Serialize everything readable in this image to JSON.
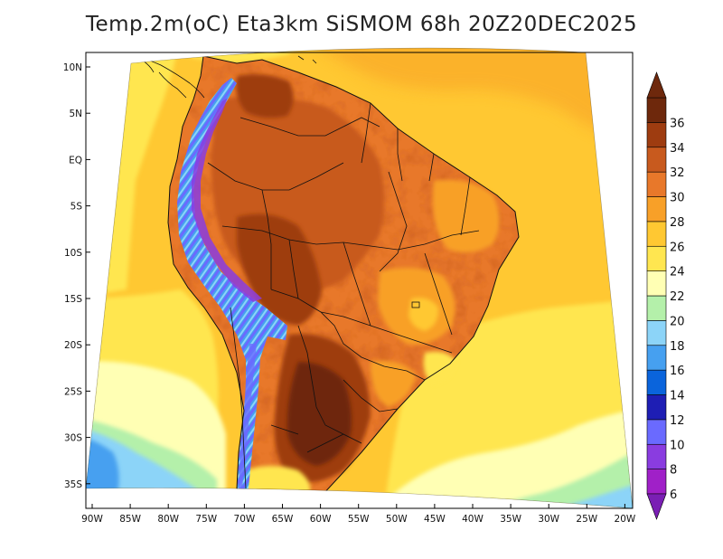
{
  "title": "Temp.2m(oC) Eta3km SiSMOM 68h 20Z20DEC2025",
  "map": {
    "variable": "2 m air temperature",
    "units": "oC",
    "model": "Eta3km SiSMOM",
    "forecast_hour": "68h",
    "valid_time": "20Z20DEC2025",
    "lat_labels": [
      "10N",
      "5N",
      "EQ",
      "5S",
      "10S",
      "15S",
      "20S",
      "25S",
      "30S",
      "35S"
    ],
    "lon_labels": [
      "90W",
      "85W",
      "80W",
      "75W",
      "70W",
      "65W",
      "60W",
      "55W",
      "50W",
      "45W",
      "40W",
      "35W",
      "30W",
      "25W",
      "20W"
    ]
  },
  "colorbar": {
    "levels": [
      6,
      8,
      10,
      12,
      14,
      16,
      18,
      20,
      22,
      24,
      26,
      28,
      30,
      32,
      34,
      36
    ],
    "level_labels": [
      "6",
      "8",
      "10",
      "12",
      "14",
      "16",
      "18",
      "20",
      "22",
      "24",
      "26",
      "28",
      "30",
      "32",
      "34",
      "36"
    ],
    "colors": [
      "#a020c8",
      "#8a3ce0",
      "#6a6aff",
      "#1e1eb4",
      "#0a64dc",
      "#46a0f0",
      "#8cd4f8",
      "#b4f0aa",
      "#ffffb4",
      "#ffe650",
      "#ffc832",
      "#f8a028",
      "#e8782a",
      "#c85a1e",
      "#9e3c10",
      "#6e280c"
    ]
  }
}
